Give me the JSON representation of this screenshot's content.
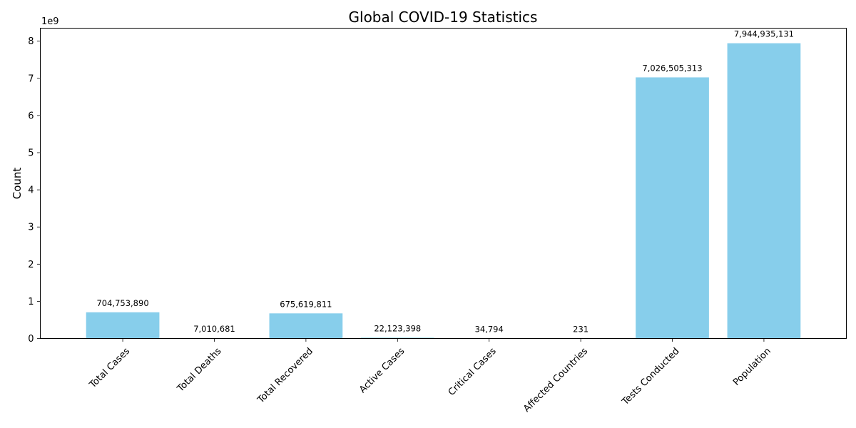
{
  "chart_data": {
    "type": "bar",
    "title": "Global COVID-19 Statistics",
    "xlabel": "",
    "ylabel": "Count",
    "y_offset_label": "1e9",
    "ylim": [
      0,
      8.35
    ],
    "y_ticks": [
      0,
      1,
      2,
      3,
      4,
      5,
      6,
      7,
      8
    ],
    "bar_color": "#87CEEB",
    "categories": [
      "Total Cases",
      "Total Deaths",
      "Total Recovered",
      "Active Cases",
      "Critical Cases",
      "Affected Countries",
      "Tests Conducted",
      "Population"
    ],
    "values": [
      704753890,
      7010681,
      675619811,
      22123398,
      34794,
      231,
      7026505313,
      7944935131
    ],
    "data_labels": [
      "704,753,890",
      "7,010,681",
      "675,619,811",
      "22,123,398",
      "34,794",
      "231",
      "7,026,505,313",
      "7,944,935,131"
    ]
  }
}
